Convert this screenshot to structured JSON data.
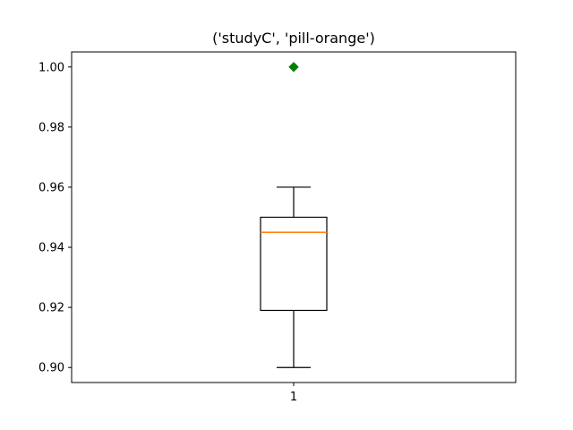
{
  "chart_data": {
    "type": "box",
    "title": "('studyC', 'pill-orange')",
    "xlabel": "",
    "ylabel": "",
    "categories": [
      "1"
    ],
    "boxes": [
      {
        "category": "1",
        "whisker_low": 0.9,
        "q1": 0.919,
        "median": 0.945,
        "q3": 0.95,
        "whisker_high": 0.96,
        "fliers": [
          1.0
        ]
      }
    ],
    "ylim": [
      0.895,
      1.005
    ],
    "yticks": [
      0.9,
      0.92,
      0.94,
      0.96,
      0.98,
      1.0
    ],
    "ytick_labels": [
      "0.90",
      "0.92",
      "0.94",
      "0.96",
      "0.98",
      "1.00"
    ],
    "grid": false,
    "colors": {
      "box": "#000000",
      "median": "#ff7f0e",
      "flier": "#008000"
    }
  }
}
